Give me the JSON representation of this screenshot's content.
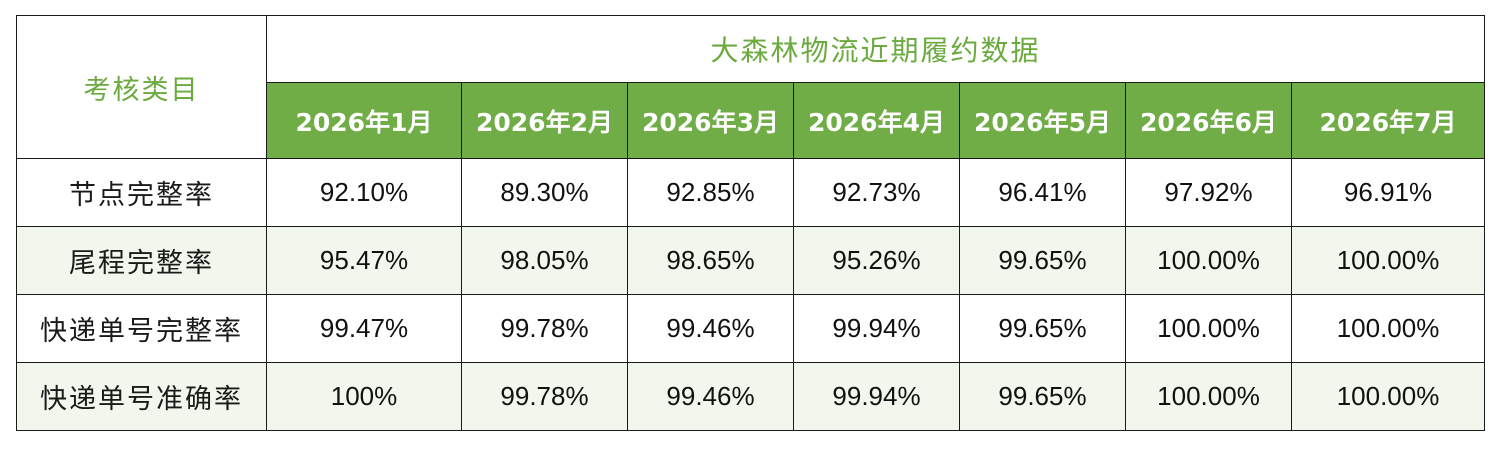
{
  "table": {
    "category_header": "考核类目",
    "title": "大森林物流近期履约数据",
    "months": [
      "2026年1月",
      "2026年2月",
      "2026年3月",
      "2026年4月",
      "2026年5月",
      "2026年6月",
      "2026年7月"
    ],
    "rows": [
      {
        "label": "节点完整率",
        "values": [
          "92.10%",
          "89.30%",
          "92.85%",
          "92.73%",
          "96.41%",
          "97.92%",
          "96.91%"
        ]
      },
      {
        "label": "尾程完整率",
        "values": [
          "95.47%",
          "98.05%",
          "98.65%",
          "95.26%",
          "99.65%",
          "100.00%",
          "100.00%"
        ]
      },
      {
        "label": "快递单号完整率",
        "values": [
          "99.47%",
          "99.78%",
          "99.46%",
          "99.94%",
          "99.65%",
          "100.00%",
          "100.00%"
        ]
      },
      {
        "label": "快递单号准确率",
        "values": [
          "100%",
          "99.78%",
          "99.46%",
          "99.94%",
          "99.65%",
          "100.00%",
          "100.00%"
        ]
      }
    ]
  },
  "colors": {
    "header_green": "#70ad47",
    "title_text_green": "#6aaa3e",
    "alt_row_bg": "#f1f7ec"
  }
}
